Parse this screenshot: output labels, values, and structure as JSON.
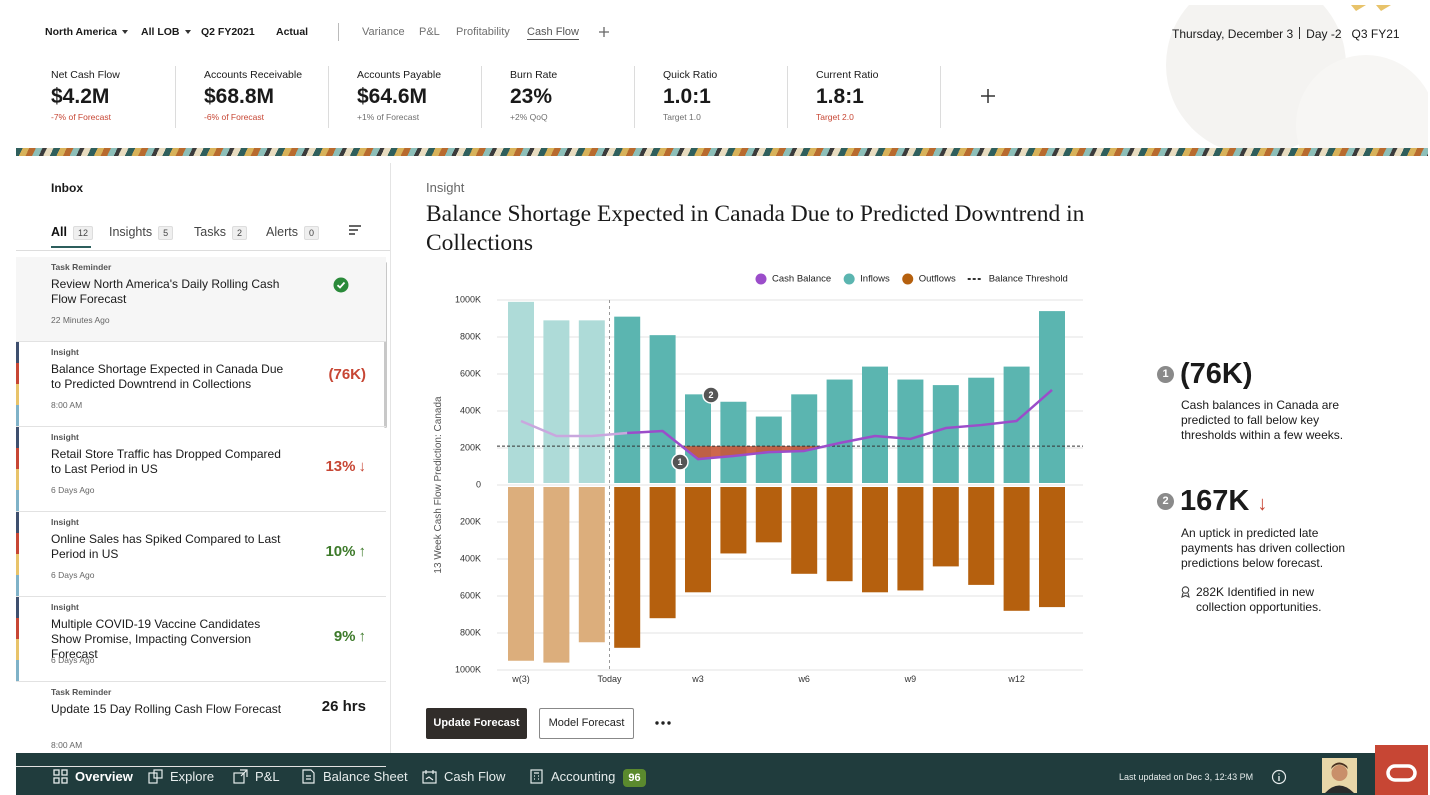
{
  "top_bar": {
    "filters": [
      "North America",
      "All LOB",
      "Q2 FY2021",
      "Actual"
    ],
    "tabs": [
      "Variance",
      "P&L",
      "Profitability",
      "Cash Flow"
    ],
    "date": "Thursday, December 3",
    "day": "Day -2",
    "quarter": "Q3 FY21"
  },
  "kpis": [
    {
      "title": "Net Cash Flow",
      "value": "$4.2M",
      "note": "-7% of Forecast",
      "note_color": "#c74634"
    },
    {
      "title": "Accounts Receivable",
      "value": "$68.8M",
      "note": "-6% of Forecast",
      "note_color": "#c74634"
    },
    {
      "title": "Accounts Payable",
      "value": "$64.6M",
      "note": "+1% of Forecast",
      "note_color": "#6f6f6f"
    },
    {
      "title": "Burn Rate",
      "value": "23%",
      "note": "+2% QoQ",
      "note_color": "#6f6f6f"
    },
    {
      "title": "Quick Ratio",
      "value": "1.0:1",
      "note": "Target 1.0",
      "note_color": "#6f6f6f"
    },
    {
      "title": "Current Ratio",
      "value": "1.8:1",
      "note": "Target 2.0",
      "note_color": "#c74634"
    }
  ],
  "inbox": {
    "title": "Inbox",
    "tabs": [
      {
        "label": "All",
        "count": 12
      },
      {
        "label": "Insights",
        "count": 5
      },
      {
        "label": "Tasks",
        "count": 2
      },
      {
        "label": "Alerts",
        "count": 0
      }
    ],
    "items": [
      {
        "type": "Task Reminder",
        "title": "Review North America's Daily Rolling Cash Flow Forecast",
        "time": "22 Minutes Ago",
        "done": true
      },
      {
        "type": "Insight",
        "title": "Balance Shortage Expected in Canada Due to Predicted Downtrend in Collections",
        "time": "8:00 AM",
        "metric": "(76K)",
        "metric_color": "#c74634"
      },
      {
        "type": "Insight",
        "title": "Retail Store Traffic has Dropped Compared to Last Period in US",
        "time": "6 Days Ago",
        "metric": "13%",
        "trend": "↓",
        "metric_color": "#c74634"
      },
      {
        "type": "Insight",
        "title": "Online Sales has Spiked Compared to Last Period in US",
        "time": "6 Days Ago",
        "metric": "10%",
        "trend": "↑",
        "metric_color": "#3d7a2a"
      },
      {
        "type": "Insight",
        "title": "Multiple COVID-19 Vaccine Candidates Show Promise, Impacting Conversion Forecast",
        "time": "6 Days Ago",
        "metric": "9%",
        "trend": "↑",
        "metric_color": "#3d7a2a"
      },
      {
        "type": "Task Reminder",
        "title": "Update 15 Day Rolling Cash Flow Forecast",
        "time": "8:00 AM",
        "metric": "26 hrs",
        "metric_color": "#1a1a1a"
      }
    ]
  },
  "insight": {
    "label": "Insight",
    "title": "Balance Shortage Expected in Canada Due to Predicted Downtrend in Collections",
    "buttons": [
      "Update Forecast",
      "Model Forecast"
    ],
    "callouts": [
      {
        "number": "1",
        "value": "(76K)",
        "text": "Cash balances in Canada are predicted to fall below key thresholds within a few weeks."
      },
      {
        "number": "2",
        "value": "167K",
        "trend": "↓",
        "text": "An uptick in predicted late payments has driven collection predictions below forecast.",
        "detail": "282K Identified in new collection opportunities."
      }
    ]
  },
  "chart_data": {
    "type": "bar",
    "y_label": "13 Week Cash Flow Prediction: Canada",
    "categories": [
      "w(3)",
      null,
      null,
      null,
      null,
      "w3",
      null,
      null,
      "w6",
      null,
      null,
      "w9",
      null,
      null,
      "w12",
      null
    ],
    "today_label": "Today",
    "today_index": 3,
    "ylim": [
      -1000,
      1000
    ],
    "yticks": [
      {
        "value": 1000,
        "label": "1000K"
      },
      {
        "value": 800,
        "label": "800K"
      },
      {
        "value": 600,
        "label": "600K"
      },
      {
        "value": 400,
        "label": "400K"
      },
      {
        "value": 200,
        "label": "200K"
      },
      0,
      {
        "value": -200,
        "label": "200K"
      },
      {
        "value": -400,
        "label": "400K"
      },
      {
        "value": -600,
        "label": "600K"
      },
      {
        "value": -800,
        "label": "800K"
      },
      {
        "value": -1000,
        "label": "1000K"
      }
    ],
    "grid": true,
    "series": [
      {
        "name": "Cash Balance",
        "type": "line",
        "color": "#9b4dca",
        "past_color": "#c9a7de",
        "values": [
          346,
          265,
          265,
          281,
          292,
          140,
          157,
          178,
          184,
          227,
          265,
          249,
          308,
          324,
          346,
          514
        ]
      },
      {
        "name": "Inflows",
        "type": "bar",
        "color": "#5bb5b0",
        "past_color": "#aedbd8",
        "values": [
          990,
          890,
          890,
          910,
          810,
          490,
          450,
          370,
          490,
          570,
          640,
          570,
          540,
          580,
          640,
          940
        ]
      },
      {
        "name": "Outflows",
        "type": "bar",
        "color": "#b5600e",
        "past_color": "#dcae7c",
        "values": [
          -950,
          -960,
          -850,
          -880,
          -720,
          -580,
          -370,
          -310,
          -480,
          -520,
          -580,
          -570,
          -440,
          -540,
          -680,
          -660
        ]
      }
    ],
    "threshold": {
      "name": "Balance Threshold",
      "value": 210,
      "color": "#333333"
    },
    "shortage_color": "#c9563a",
    "annotations": [
      {
        "label": "1"
      },
      {
        "label": "2"
      }
    ]
  },
  "bottom_nav": {
    "items": [
      "Overview",
      "Explore",
      "P&L",
      "Balance Sheet",
      "Cash Flow",
      "Accounting"
    ],
    "badge": 96,
    "updated": "Last updated on Dec 3, 12:43 PM"
  }
}
